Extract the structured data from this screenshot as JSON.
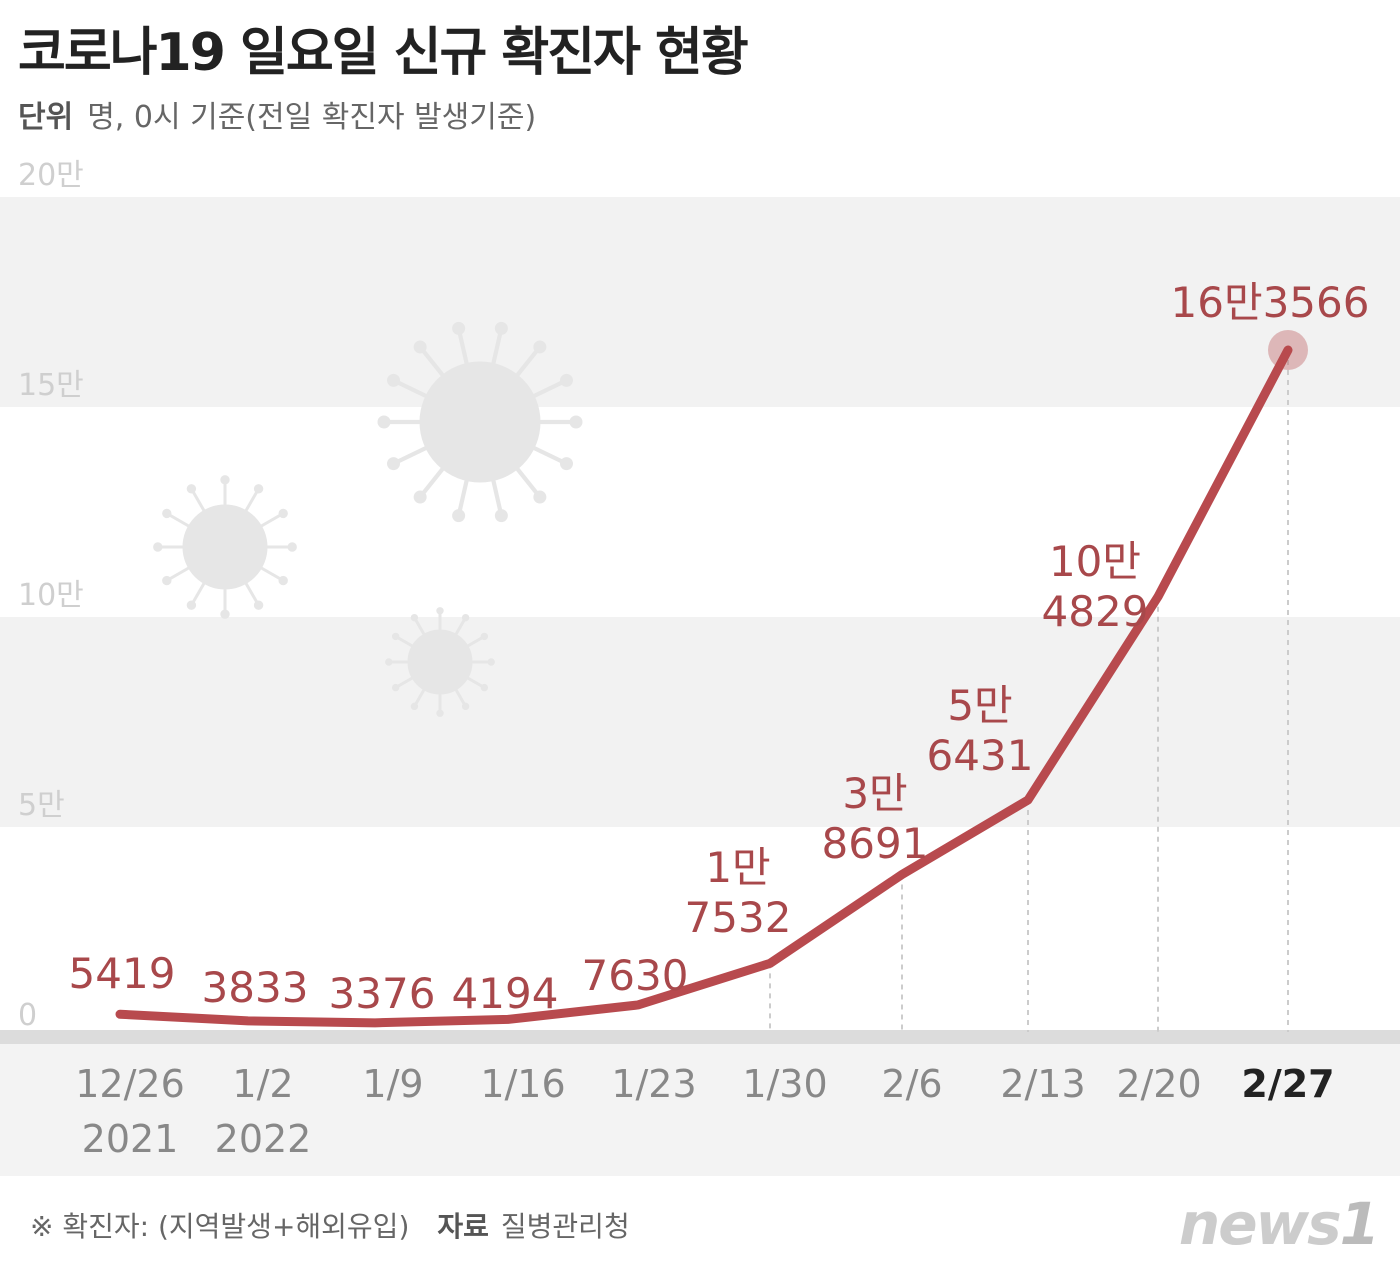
{
  "title": "코로나19 일요일 신규 확진자 현황",
  "subtitle": {
    "unit_label": "단위",
    "unit_text": "명, 0시 기준(전일 확진자 발생기준)"
  },
  "footer": {
    "note": "※ 확진자: (지역발생+해외유입)",
    "source_label": "자료",
    "source": "질병관리청"
  },
  "logo": "news1",
  "colors": {
    "line": "#b84a4e",
    "label": "#a8484b",
    "band": "#f2f2f2",
    "axis": "#999999"
  },
  "chart_data": {
    "type": "line",
    "title": "코로나19 일요일 신규 확진자 현황",
    "ylabel": "명",
    "ylim": [
      0,
      200000
    ],
    "yticks": [
      {
        "value": 0,
        "label": "0"
      },
      {
        "value": 50000,
        "label": "5만"
      },
      {
        "value": 100000,
        "label": "10만"
      },
      {
        "value": 150000,
        "label": "15만"
      },
      {
        "value": 200000,
        "label": "20만"
      }
    ],
    "categories": [
      "12/26",
      "1/2",
      "1/9",
      "1/16",
      "1/23",
      "1/30",
      "2/6",
      "2/13",
      "2/20",
      "2/27"
    ],
    "year_labels": [
      "2021",
      "2022",
      "",
      "",
      "",
      "",
      "",
      "",
      "",
      ""
    ],
    "values": [
      5419,
      3833,
      3376,
      4194,
      7630,
      17532,
      38691,
      56431,
      104829,
      163566
    ],
    "data_labels": [
      [
        "5419"
      ],
      [
        "3833"
      ],
      [
        "3376"
      ],
      [
        "4194"
      ],
      [
        "7630"
      ],
      [
        "1만",
        "7532"
      ],
      [
        "3만",
        "8691"
      ],
      [
        "5만",
        "6431"
      ],
      [
        "10만",
        "4829"
      ],
      [
        "16만3566"
      ]
    ],
    "highlight": "2/27"
  }
}
